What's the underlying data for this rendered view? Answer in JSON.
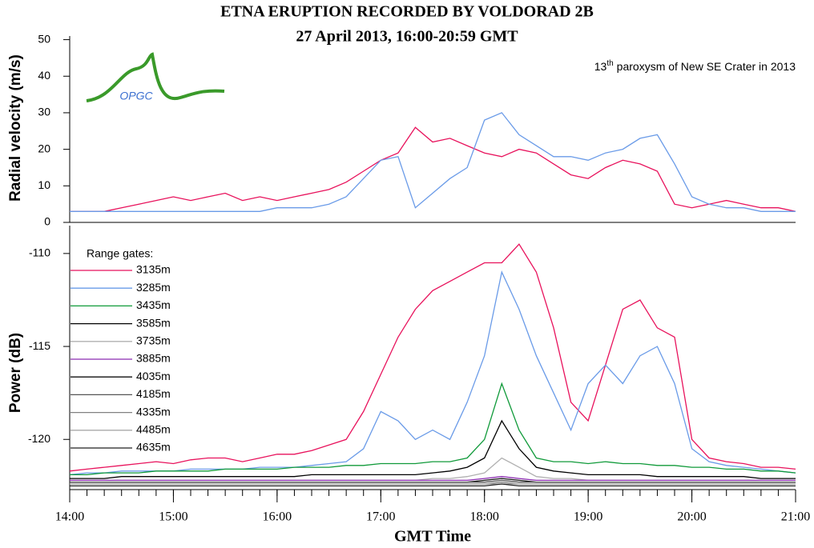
{
  "logo": "OPGC",
  "chart_data": [
    {
      "type": "line",
      "title": "ETNA ERUPTION RECORDED BY VOLDORAD 2B",
      "subtitle": "27 April 2013, 16:00-20:59 GMT",
      "annotation": {
        "number": "13",
        "superscript": "th",
        "text": "paroxysm of New SE Crater in 2013"
      },
      "ylabel": "Radial velocity (m/s)",
      "x": [
        "14:00",
        "14:10",
        "14:20",
        "14:30",
        "14:40",
        "14:50",
        "15:00",
        "15:10",
        "15:20",
        "15:30",
        "15:40",
        "15:50",
        "16:00",
        "16:10",
        "16:20",
        "16:30",
        "16:40",
        "16:50",
        "17:00",
        "17:10",
        "17:20",
        "17:30",
        "17:40",
        "17:50",
        "18:00",
        "18:10",
        "18:20",
        "18:30",
        "18:40",
        "18:50",
        "19:00",
        "19:10",
        "19:20",
        "19:30",
        "19:40",
        "19:50",
        "20:00",
        "20:10",
        "20:20",
        "20:30",
        "20:40",
        "20:50",
        "21:00"
      ],
      "ylim": [
        0,
        51
      ],
      "yticks": [
        0,
        10,
        20,
        30,
        40,
        50
      ],
      "series": [
        {
          "name": "3135m",
          "color": "#e8125c",
          "values": [
            3,
            3,
            3,
            4,
            5,
            6,
            7,
            6,
            7,
            8,
            6,
            7,
            6,
            7,
            8,
            9,
            11,
            14,
            17,
            19,
            26,
            22,
            23,
            21,
            19,
            18,
            20,
            19,
            16,
            13,
            12,
            15,
            17,
            16,
            14,
            5,
            4,
            5,
            6,
            5,
            4,
            4,
            3
          ]
        },
        {
          "name": "3285m",
          "color": "#6a9be8",
          "values": [
            3,
            3,
            3,
            3,
            3,
            3,
            3,
            3,
            3,
            3,
            3,
            3,
            4,
            4,
            4,
            5,
            7,
            12,
            17,
            18,
            4,
            8,
            12,
            15,
            28,
            30,
            24,
            21,
            18,
            18,
            17,
            19,
            20,
            23,
            24,
            16,
            7,
            5,
            4,
            4,
            3,
            3,
            3
          ]
        }
      ]
    },
    {
      "type": "line",
      "ylabel": "Power (dB)",
      "xlabel": "GMT Time",
      "legend_title": "Range gates:",
      "x": [
        "14:00",
        "14:10",
        "14:20",
        "14:30",
        "14:40",
        "14:50",
        "15:00",
        "15:10",
        "15:20",
        "15:30",
        "15:40",
        "15:50",
        "16:00",
        "16:10",
        "16:20",
        "16:30",
        "16:40",
        "16:50",
        "17:00",
        "17:10",
        "17:20",
        "17:30",
        "17:40",
        "17:50",
        "18:00",
        "18:10",
        "18:20",
        "18:30",
        "18:40",
        "18:50",
        "19:00",
        "19:10",
        "19:20",
        "19:30",
        "19:40",
        "19:50",
        "20:00",
        "20:10",
        "20:20",
        "20:30",
        "20:40",
        "20:50",
        "21:00"
      ],
      "xticks": [
        "14:00",
        "15:00",
        "16:00",
        "17:00",
        "18:00",
        "19:00",
        "20:00",
        "21:00"
      ],
      "ylim": [
        -122.7,
        -108.5
      ],
      "yticks": [
        -120,
        -115,
        -110
      ],
      "series": [
        {
          "name": "3135m",
          "color": "#e8125c",
          "values": [
            -121.7,
            -121.6,
            -121.5,
            -121.4,
            -121.3,
            -121.2,
            -121.3,
            -121.1,
            -121,
            -121,
            -121.2,
            -121,
            -120.8,
            -120.8,
            -120.6,
            -120.3,
            -120,
            -118.5,
            -116.5,
            -114.5,
            -113,
            -112,
            -111.5,
            -111,
            -110.5,
            -110.5,
            -109.5,
            -111,
            -114,
            -118,
            -119,
            -116,
            -113,
            -112.5,
            -114,
            -114.5,
            -120,
            -121,
            -121.2,
            -121.3,
            -121.5,
            -121.5,
            -121.6
          ]
        },
        {
          "name": "3285m",
          "color": "#6a9be8",
          "values": [
            -121.9,
            -121.8,
            -121.8,
            -121.7,
            -121.7,
            -121.7,
            -121.7,
            -121.6,
            -121.6,
            -121.6,
            -121.6,
            -121.5,
            -121.5,
            -121.5,
            -121.4,
            -121.3,
            -121.2,
            -120.5,
            -118.5,
            -119,
            -120,
            -119.5,
            -120,
            -118,
            -115.5,
            -111,
            -113,
            -115.5,
            -117.5,
            -119.5,
            -117,
            -116,
            -117,
            -115.5,
            -115,
            -117,
            -120.5,
            -121.2,
            -121.4,
            -121.5,
            -121.6,
            -121.7,
            -121.8
          ]
        },
        {
          "name": "3435m",
          "color": "#109a3a",
          "values": [
            -121.9,
            -121.9,
            -121.8,
            -121.8,
            -121.8,
            -121.7,
            -121.7,
            -121.7,
            -121.7,
            -121.6,
            -121.6,
            -121.6,
            -121.6,
            -121.5,
            -121.5,
            -121.5,
            -121.4,
            -121.4,
            -121.3,
            -121.3,
            -121.3,
            -121.2,
            -121.2,
            -121,
            -120,
            -117,
            -119.5,
            -121,
            -121.2,
            -121.2,
            -121.3,
            -121.2,
            -121.3,
            -121.3,
            -121.4,
            -121.4,
            -121.5,
            -121.5,
            -121.6,
            -121.6,
            -121.7,
            -121.7,
            -121.8
          ]
        },
        {
          "name": "3585m",
          "color": "#000000",
          "values": [
            -122.1,
            -122.1,
            -122.1,
            -122,
            -122,
            -122,
            -122,
            -122,
            -122,
            -122,
            -122,
            -122,
            -122,
            -122,
            -121.9,
            -121.9,
            -121.9,
            -121.9,
            -121.9,
            -121.9,
            -121.9,
            -121.8,
            -121.7,
            -121.5,
            -121,
            -119,
            -120.5,
            -121.5,
            -121.7,
            -121.8,
            -121.9,
            -121.9,
            -121.9,
            -121.9,
            -122,
            -122,
            -122,
            -122,
            -122,
            -122,
            -122.1,
            -122.1,
            -122.1
          ]
        },
        {
          "name": "3735m",
          "color": "#b0b0b0",
          "values": [
            -122.2,
            -122.2,
            -122.2,
            -122.2,
            -122.2,
            -122.2,
            -122.2,
            -122.2,
            -122.2,
            -122.2,
            -122.2,
            -122.2,
            -122.2,
            -122.2,
            -122.2,
            -122.2,
            -122.2,
            -122.2,
            -122.2,
            -122.2,
            -122.2,
            -122.1,
            -122.1,
            -122,
            -121.8,
            -121,
            -121.5,
            -122,
            -122.1,
            -122.1,
            -122.2,
            -122.2,
            -122.2,
            -122.2,
            -122.2,
            -122.2,
            -122.2,
            -122.2,
            -122.2,
            -122.2,
            -122.2,
            -122.2,
            -122.2
          ]
        },
        {
          "name": "3885m",
          "color": "#8a2ab0",
          "values": [
            -122.2,
            -122.2,
            -122.2,
            -122.2,
            -122.2,
            -122.2,
            -122.2,
            -122.2,
            -122.2,
            -122.2,
            -122.2,
            -122.2,
            -122.2,
            -122.2,
            -122.2,
            -122.2,
            -122.2,
            -122.2,
            -122.2,
            -122.2,
            -122.2,
            -122.2,
            -122.2,
            -122.2,
            -122.1,
            -122,
            -122.1,
            -122.2,
            -122.2,
            -122.2,
            -122.2,
            -122.2,
            -122.2,
            -122.2,
            -122.2,
            -122.2,
            -122.2,
            -122.2,
            -122.2,
            -122.2,
            -122.2,
            -122.2,
            -122.2
          ]
        },
        {
          "name": "4035m",
          "color": "#111111",
          "values": [
            -122.3,
            -122.3,
            -122.3,
            -122.3,
            -122.3,
            -122.3,
            -122.3,
            -122.3,
            -122.3,
            -122.3,
            -122.3,
            -122.3,
            -122.3,
            -122.3,
            -122.3,
            -122.3,
            -122.3,
            -122.3,
            -122.3,
            -122.3,
            -122.3,
            -122.3,
            -122.3,
            -122.3,
            -122.2,
            -122.1,
            -122.2,
            -122.3,
            -122.3,
            -122.3,
            -122.3,
            -122.3,
            -122.3,
            -122.3,
            -122.3,
            -122.3,
            -122.3,
            -122.3,
            -122.3,
            -122.3,
            -122.3,
            -122.3,
            -122.3
          ]
        },
        {
          "name": "4185m",
          "color": "#555555",
          "values": [
            -122.3,
            -122.3,
            -122.3,
            -122.3,
            -122.3,
            -122.3,
            -122.3,
            -122.3,
            -122.3,
            -122.3,
            -122.3,
            -122.3,
            -122.3,
            -122.3,
            -122.3,
            -122.3,
            -122.3,
            -122.3,
            -122.3,
            -122.3,
            -122.3,
            -122.3,
            -122.3,
            -122.3,
            -122.3,
            -122.2,
            -122.3,
            -122.3,
            -122.3,
            -122.3,
            -122.3,
            -122.3,
            -122.3,
            -122.3,
            -122.3,
            -122.3,
            -122.3,
            -122.3,
            -122.3,
            -122.3,
            -122.3,
            -122.3,
            -122.3
          ]
        },
        {
          "name": "4335m",
          "color": "#808080",
          "values": [
            -122.4,
            -122.4,
            -122.4,
            -122.4,
            -122.4,
            -122.4,
            -122.4,
            -122.4,
            -122.4,
            -122.4,
            -122.4,
            -122.4,
            -122.4,
            -122.4,
            -122.4,
            -122.4,
            -122.4,
            -122.4,
            -122.4,
            -122.4,
            -122.4,
            -122.4,
            -122.4,
            -122.4,
            -122.4,
            -122.3,
            -122.4,
            -122.4,
            -122.4,
            -122.4,
            -122.4,
            -122.4,
            -122.4,
            -122.4,
            -122.4,
            -122.4,
            -122.4,
            -122.4,
            -122.4,
            -122.4,
            -122.4,
            -122.4,
            -122.4
          ]
        },
        {
          "name": "4485m",
          "color": "#a8a8a8",
          "values": [
            -122.4,
            -122.4,
            -122.4,
            -122.4,
            -122.4,
            -122.4,
            -122.4,
            -122.4,
            -122.4,
            -122.4,
            -122.4,
            -122.4,
            -122.4,
            -122.4,
            -122.4,
            -122.4,
            -122.4,
            -122.4,
            -122.4,
            -122.4,
            -122.4,
            -122.4,
            -122.4,
            -122.4,
            -122.4,
            -122.4,
            -122.4,
            -122.4,
            -122.4,
            -122.4,
            -122.4,
            -122.4,
            -122.4,
            -122.4,
            -122.4,
            -122.4,
            -122.4,
            -122.4,
            -122.4,
            -122.4,
            -122.4,
            -122.4,
            -122.4
          ]
        },
        {
          "name": "4635m",
          "color": "#222222",
          "values": [
            -122.5,
            -122.5,
            -122.5,
            -122.5,
            -122.5,
            -122.5,
            -122.5,
            -122.5,
            -122.5,
            -122.5,
            -122.5,
            -122.5,
            -122.5,
            -122.5,
            -122.5,
            -122.5,
            -122.5,
            -122.5,
            -122.5,
            -122.5,
            -122.5,
            -122.5,
            -122.5,
            -122.5,
            -122.5,
            -122.4,
            -122.5,
            -122.5,
            -122.5,
            -122.5,
            -122.5,
            -122.5,
            -122.5,
            -122.5,
            -122.5,
            -122.5,
            -122.5,
            -122.5,
            -122.5,
            -122.5,
            -122.5,
            -122.5,
            -122.5
          ]
        }
      ]
    }
  ]
}
